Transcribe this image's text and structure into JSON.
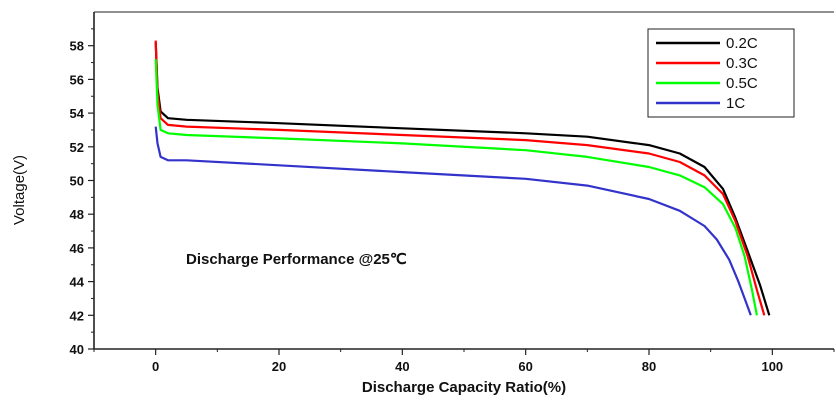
{
  "chart_data": {
    "type": "line",
    "xlabel": "Discharge Capacity Ratio(%)",
    "ylabel": "Voltage(V)",
    "annotation": "Discharge Performance @25℃",
    "xlim": [
      -10,
      110
    ],
    "ylim": [
      40,
      60
    ],
    "xticks": [
      0,
      20,
      40,
      60,
      80,
      100
    ],
    "yticks": [
      40,
      42,
      44,
      46,
      48,
      50,
      52,
      54,
      56,
      58
    ],
    "grid": false,
    "legend_position": "top-right",
    "series": [
      {
        "name": "0.2C",
        "color": "#000000",
        "points": [
          [
            0,
            58.2
          ],
          [
            0.3,
            55.5
          ],
          [
            0.8,
            54.1
          ],
          [
            2,
            53.7
          ],
          [
            5,
            53.6
          ],
          [
            20,
            53.4
          ],
          [
            40,
            53.1
          ],
          [
            60,
            52.8
          ],
          [
            70,
            52.6
          ],
          [
            80,
            52.1
          ],
          [
            85,
            51.6
          ],
          [
            89,
            50.8
          ],
          [
            92,
            49.5
          ],
          [
            94,
            47.8
          ],
          [
            96,
            45.8
          ],
          [
            98,
            43.8
          ],
          [
            99.5,
            42.0
          ]
        ]
      },
      {
        "name": "0.3C",
        "color": "#ff0000",
        "points": [
          [
            0,
            58.3
          ],
          [
            0.3,
            55.2
          ],
          [
            0.8,
            53.7
          ],
          [
            2,
            53.3
          ],
          [
            5,
            53.2
          ],
          [
            20,
            53.0
          ],
          [
            40,
            52.7
          ],
          [
            60,
            52.4
          ],
          [
            70,
            52.1
          ],
          [
            80,
            51.6
          ],
          [
            85,
            51.1
          ],
          [
            89,
            50.3
          ],
          [
            92,
            49.2
          ],
          [
            94,
            47.6
          ],
          [
            96,
            45.5
          ],
          [
            97.5,
            43.5
          ],
          [
            98.7,
            42.0
          ]
        ]
      },
      {
        "name": "0.5C",
        "color": "#00ff00",
        "points": [
          [
            0,
            57.2
          ],
          [
            0.3,
            54.5
          ],
          [
            0.8,
            53.0
          ],
          [
            2,
            52.8
          ],
          [
            5,
            52.7
          ],
          [
            20,
            52.5
          ],
          [
            40,
            52.2
          ],
          [
            60,
            51.8
          ],
          [
            70,
            51.4
          ],
          [
            80,
            50.8
          ],
          [
            85,
            50.3
          ],
          [
            89,
            49.6
          ],
          [
            92,
            48.6
          ],
          [
            94,
            47.2
          ],
          [
            95.5,
            45.5
          ],
          [
            96.7,
            43.5
          ],
          [
            97.5,
            42.0
          ]
        ]
      },
      {
        "name": "1C",
        "color": "#3333cc",
        "points": [
          [
            0,
            53.2
          ],
          [
            0.3,
            52.2
          ],
          [
            0.8,
            51.4
          ],
          [
            2,
            51.2
          ],
          [
            5,
            51.2
          ],
          [
            20,
            50.9
          ],
          [
            40,
            50.5
          ],
          [
            60,
            50.1
          ],
          [
            70,
            49.7
          ],
          [
            80,
            48.9
          ],
          [
            85,
            48.2
          ],
          [
            89,
            47.3
          ],
          [
            91,
            46.5
          ],
          [
            93,
            45.3
          ],
          [
            94.5,
            44.0
          ],
          [
            95.5,
            43.0
          ],
          [
            96.5,
            42.0
          ]
        ]
      }
    ]
  }
}
